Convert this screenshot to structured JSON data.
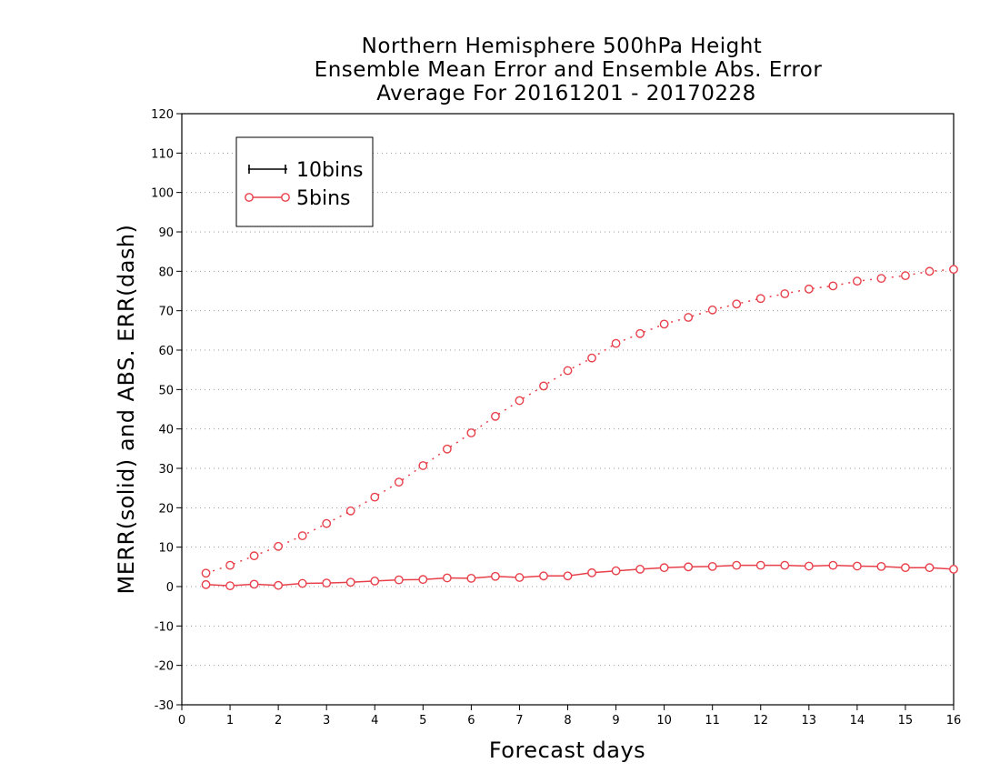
{
  "chart_data": {
    "type": "line",
    "title": [
      "Northern Hemisphere 500hPa Height",
      "Ensemble Mean Error and Ensemble Abs. Error",
      "Average For 20161201 - 20170228"
    ],
    "xlabel": "Forecast days",
    "ylabel": "MERR(solid) and ABS. ERR(dash)",
    "xlim": [
      0,
      16
    ],
    "ylim": [
      -30,
      120
    ],
    "xticks": [
      0,
      1,
      2,
      3,
      4,
      5,
      6,
      7,
      8,
      9,
      10,
      11,
      12,
      13,
      14,
      15,
      16
    ],
    "yticks": [
      -30,
      -20,
      -10,
      0,
      10,
      20,
      30,
      40,
      50,
      60,
      70,
      80,
      90,
      100,
      110,
      120
    ],
    "grid": "horizontal dotted",
    "legend_position": "top-left",
    "x": [
      0.5,
      1,
      1.5,
      2,
      2.5,
      3,
      3.5,
      4,
      4.5,
      5,
      5.5,
      6,
      6.5,
      7,
      7.5,
      8,
      8.5,
      9,
      9.5,
      10,
      10.5,
      11,
      11.5,
      12,
      12.5,
      13,
      13.5,
      14,
      14.5,
      15,
      15.5,
      16
    ],
    "series": [
      {
        "name": "10bins",
        "color": "#000000",
        "marker": "plus",
        "mean_error": [],
        "abs_error": []
      },
      {
        "name": "5bins",
        "color": "#e8404a",
        "marker": "circle",
        "mean_error": [
          0.5,
          0.2,
          0.6,
          0.3,
          0.8,
          0.9,
          1.1,
          1.4,
          1.7,
          1.8,
          2.2,
          2.1,
          2.6,
          2.3,
          2.7,
          2.7,
          3.5,
          4.0,
          4.4,
          4.8,
          5.0,
          5.1,
          5.4,
          5.4,
          5.4,
          5.2,
          5.4,
          5.2,
          5.1,
          4.8,
          4.8,
          4.4
        ],
        "abs_error": [
          3.4,
          5.4,
          7.8,
          10.2,
          12.9,
          16.0,
          19.2,
          22.7,
          26.5,
          30.7,
          34.9,
          39.0,
          43.2,
          47.2,
          50.9,
          54.8,
          58.0,
          61.7,
          64.2,
          66.6,
          68.3,
          70.2,
          71.7,
          73.1,
          74.3,
          75.5,
          76.3,
          77.5,
          78.2,
          78.9,
          80.0,
          80.5
        ]
      }
    ]
  }
}
